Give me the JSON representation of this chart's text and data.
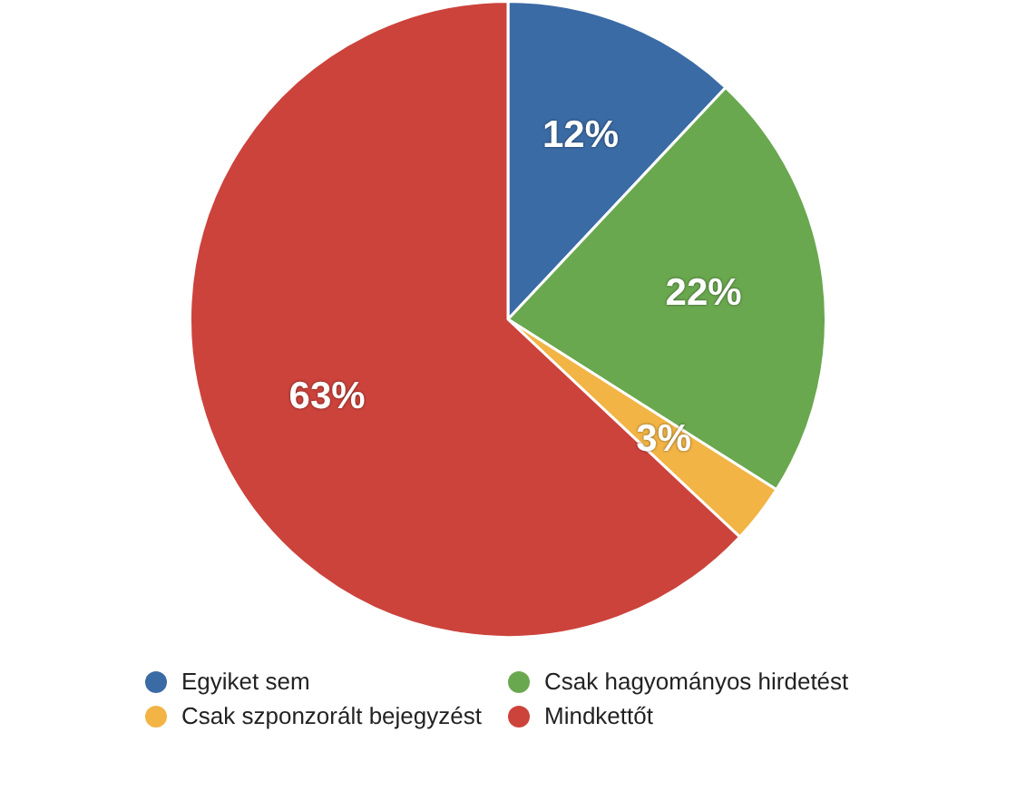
{
  "chart_data": {
    "type": "pie",
    "categories": [
      "Egyiket sem",
      "Csak hagyományos hirdetést",
      "Csak szponzorált bejegyzést",
      "Mindkettőt"
    ],
    "values": [
      12,
      22,
      3,
      63
    ],
    "colors": [
      "#3b6ba5",
      "#6aa84f",
      "#f2b445",
      "#cc433c"
    ],
    "value_labels": [
      "12%",
      "22%",
      "3%",
      "63%"
    ],
    "legend": "bottom"
  }
}
